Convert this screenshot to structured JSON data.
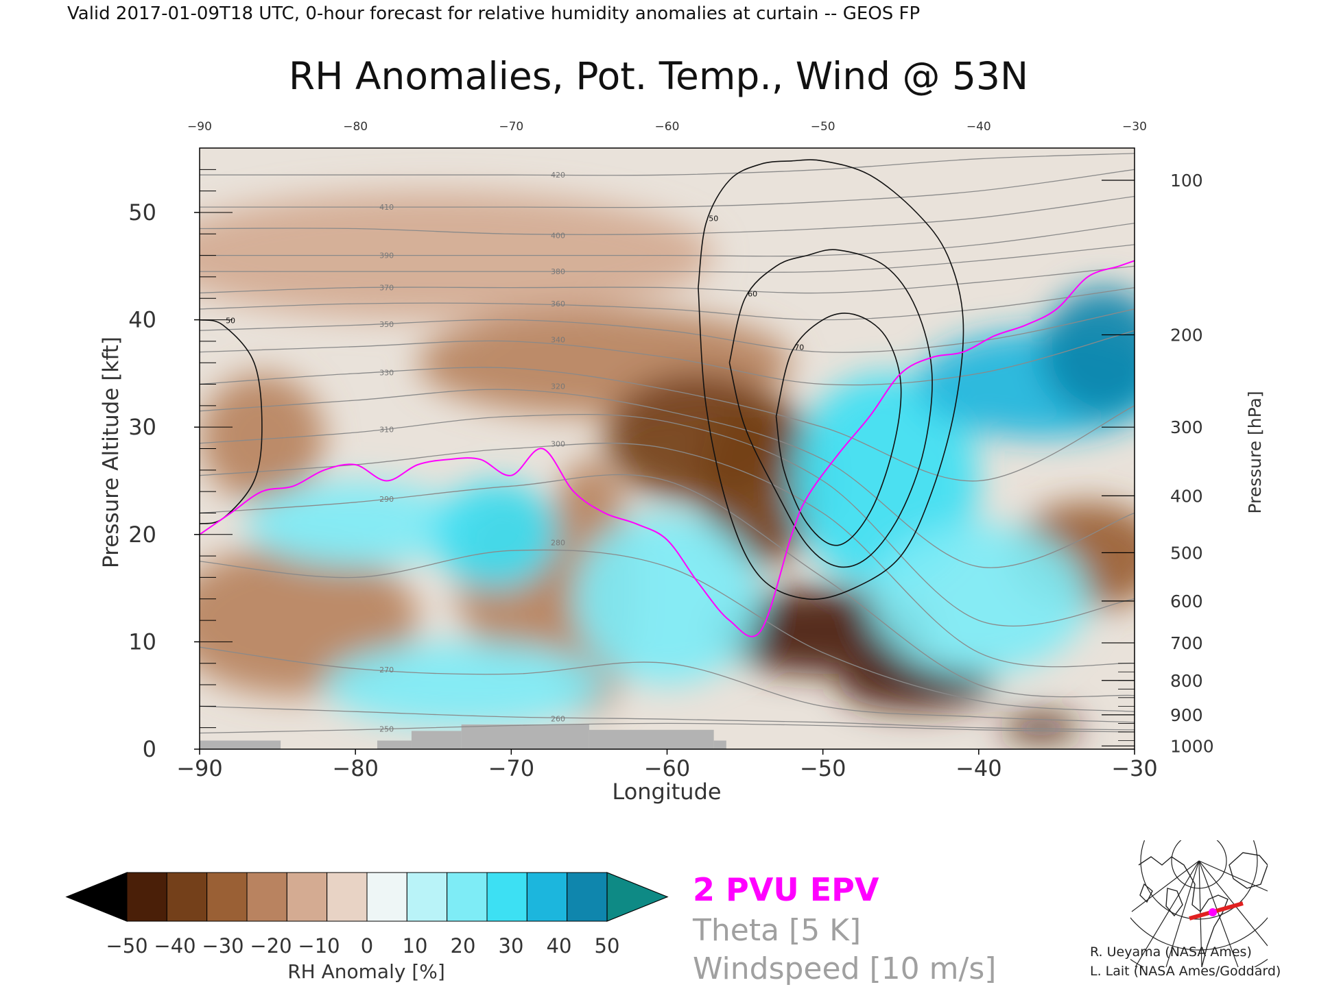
{
  "header": {
    "valid_line": "Valid 2017-01-09T18 UTC, 0-hour forecast for relative humidity anomalies at curtain -- GEOS FP"
  },
  "chart_data": {
    "type": "heatmap",
    "title": "RH Anomalies, Pot. Temp., Wind @ 53N",
    "xlabel": "Longitude",
    "ylabel_left": "Pressure Altitude [kft]",
    "ylabel_right": "Pressure [hPa]",
    "xlim": [
      -90,
      -30
    ],
    "ylim": [
      0,
      56
    ],
    "x_ticks": [
      -90,
      -80,
      -70,
      -60,
      -50,
      -40,
      -30
    ],
    "x_tick_labels": [
      "−90",
      "−80",
      "−70",
      "−60",
      "−50",
      "−40",
      "−30"
    ],
    "y_ticks": [
      0,
      10,
      20,
      30,
      40,
      50
    ],
    "y_tick_labels": [
      "0",
      "10",
      "20",
      "30",
      "40",
      "50"
    ],
    "pressure_ticks": [
      {
        "hpa": 100,
        "label": "100",
        "kft": 53.0
      },
      {
        "hpa": 200,
        "label": "200",
        "kft": 38.6
      },
      {
        "hpa": 300,
        "label": "300",
        "kft": 30.0
      },
      {
        "hpa": 400,
        "label": "400",
        "kft": 23.6
      },
      {
        "hpa": 500,
        "label": "500",
        "kft": 18.3
      },
      {
        "hpa": 600,
        "label": "600",
        "kft": 13.8
      },
      {
        "hpa": 700,
        "label": "700",
        "kft": 9.9
      },
      {
        "hpa": 800,
        "label": "800",
        "kft": 6.4
      },
      {
        "hpa": 900,
        "label": "900",
        "kft": 3.2
      },
      {
        "hpa": 1000,
        "label": "1000",
        "kft": 0.3
      }
    ],
    "theta_contours": [
      {
        "label": "250",
        "y": [
          1.5,
          1.8,
          2.2,
          2.4,
          2.2,
          1.8,
          1.6
        ]
      },
      {
        "label": "260",
        "y": [
          4.0,
          3.5,
          3.0,
          2.8,
          2.5,
          2.0,
          1.8
        ]
      },
      {
        "label": "270",
        "y": [
          9.5,
          7.5,
          7.0,
          8.0,
          4.0,
          3.0,
          2.5
        ]
      },
      {
        "label": "280",
        "y": [
          17.5,
          16.0,
          18.5,
          17.0,
          9.0,
          4.5,
          3.5
        ]
      },
      {
        "label": "290",
        "y": [
          22.0,
          23.0,
          24.5,
          25.0,
          16.0,
          6.0,
          5.0
        ]
      },
      {
        "label": "300",
        "y": [
          25.5,
          26.5,
          28.0,
          28.0,
          22.0,
          9.0,
          8.0
        ]
      },
      {
        "label": "310",
        "y": [
          28.5,
          29.5,
          31.0,
          30.5,
          25.0,
          12.0,
          14.0
        ]
      },
      {
        "label": "320",
        "y": [
          31.5,
          32.5,
          33.5,
          31.5,
          27.0,
          17.0,
          22.0
        ]
      },
      {
        "label": "330",
        "y": [
          34.0,
          35.0,
          35.5,
          33.5,
          30.0,
          25.0,
          32.0
        ]
      },
      {
        "label": "340",
        "y": [
          37.0,
          37.5,
          38.0,
          36.5,
          34.0,
          35.0,
          39.0
        ]
      },
      {
        "label": "350",
        "y": [
          39.0,
          39.5,
          40.0,
          39.0,
          37.0,
          38.0,
          41.0
        ]
      },
      {
        "label": "360",
        "y": [
          41.0,
          41.5,
          41.5,
          41.0,
          40.0,
          41.0,
          43.0
        ]
      },
      {
        "label": "370",
        "y": [
          42.5,
          43.0,
          43.0,
          43.0,
          42.5,
          43.5,
          45.0
        ]
      },
      {
        "label": "380",
        "y": [
          44.5,
          44.5,
          44.5,
          44.5,
          44.5,
          45.5,
          47.0
        ]
      },
      {
        "label": "390",
        "y": [
          46.0,
          46.0,
          46.0,
          46.0,
          46.0,
          47.0,
          49.0
        ]
      },
      {
        "label": "400",
        "y": [
          48.5,
          48.5,
          48.0,
          48.0,
          48.5,
          49.5,
          51.5
        ]
      },
      {
        "label": "410",
        "y": [
          50.5,
          50.5,
          50.5,
          50.5,
          51.0,
          52.0,
          54.0
        ]
      },
      {
        "label": "420",
        "y": [
          53.5,
          53.5,
          53.5,
          53.5,
          54.0,
          55.0,
          55.5
        ]
      }
    ],
    "wind_contours": [
      {
        "label": "50",
        "note": "jet core near -50 lon",
        "x": [
          -58,
          -57.5,
          -56,
          -54,
          -52,
          -50,
          -47,
          -44,
          -42,
          -41,
          -41.5,
          -43,
          -45,
          -48,
          -51,
          -54,
          -56,
          -57.5,
          -58
        ],
        "y": [
          43,
          49,
          53,
          54.5,
          54.8,
          54.8,
          53.5,
          50,
          46,
          40,
          32,
          24,
          18,
          15,
          14,
          16,
          22,
          32,
          43
        ]
      },
      {
        "label": "60",
        "x": [
          -56,
          -55,
          -53,
          -51,
          -49,
          -46,
          -44,
          -43,
          -43.5,
          -45,
          -47,
          -49,
          -51,
          -53,
          -55,
          -56
        ],
        "y": [
          36,
          42,
          45,
          46,
          46.5,
          45,
          41,
          35,
          28,
          22,
          18,
          17,
          19,
          24,
          30,
          36
        ]
      },
      {
        "label": "70",
        "x": [
          -53,
          -52,
          -50,
          -48,
          -46,
          -45,
          -45.5,
          -47,
          -49,
          -51,
          -52.5,
          -53
        ],
        "y": [
          31,
          37,
          40,
          40.5,
          38.5,
          34,
          28,
          22,
          19,
          21,
          26,
          31
        ]
      },
      {
        "label": "50",
        "note": "left edge",
        "x": [
          -90,
          -88.5,
          -86.5,
          -86,
          -86.5,
          -88.5,
          -90
        ],
        "y": [
          40,
          39.5,
          36,
          30,
          25,
          21.5,
          21
        ]
      }
    ],
    "epv_2pvu": {
      "label": "2 PVU EPV",
      "x": [
        -90,
        -88,
        -86,
        -84,
        -82,
        -80,
        -78,
        -76,
        -74,
        -72,
        -70,
        -68,
        -66,
        -64,
        -62,
        -60,
        -58,
        -56,
        -54,
        -52,
        -51,
        -49,
        -47,
        -45,
        -43,
        -41,
        -39,
        -37,
        -35,
        -33,
        -31,
        -30
      ],
      "y": [
        20,
        22,
        24,
        24.5,
        26,
        26.5,
        25,
        26.5,
        27,
        27,
        25.5,
        28,
        24,
        22,
        21,
        19.5,
        15.5,
        12,
        11,
        20,
        23.5,
        27.5,
        31,
        35,
        36.5,
        37,
        38.5,
        39.5,
        41,
        44,
        45,
        45.5
      ]
    },
    "terrain": {
      "color": "#b3b3b3",
      "segments": [
        {
          "x0": -90,
          "x1": -84.8,
          "top": 0.8
        },
        {
          "x0": -78.6,
          "x1": -76.4,
          "top": 0.8
        },
        {
          "x0": -76.4,
          "x1": -73.2,
          "top": 1.7
        },
        {
          "x0": -73.2,
          "x1": -65.0,
          "top": 2.3
        },
        {
          "x0": -65.0,
          "x1": -57.0,
          "top": 1.8
        },
        {
          "x0": -57.0,
          "x1": -56.2,
          "top": 0.8
        }
      ]
    },
    "rh_anomaly_blobs": [
      {
        "cx": -75,
        "cy": 46,
        "rx": 18,
        "ry": 6,
        "value": -12
      },
      {
        "cx": -64,
        "cy": 36,
        "rx": 12,
        "ry": 5,
        "value": -22
      },
      {
        "cx": -58,
        "cy": 29,
        "rx": 6,
        "ry": 6,
        "value": -40
      },
      {
        "cx": -54,
        "cy": 25,
        "rx": 4,
        "ry": 8,
        "value": -45
      },
      {
        "cx": -50,
        "cy": 11,
        "rx": 7,
        "ry": 4,
        "value": -50
      },
      {
        "cx": -44,
        "cy": 6,
        "rx": 5,
        "ry": 2.3,
        "value": -50
      },
      {
        "cx": -36,
        "cy": 2,
        "rx": 2.5,
        "ry": 1.2,
        "value": -48
      },
      {
        "cx": -33,
        "cy": 18,
        "rx": 5,
        "ry": 5,
        "value": -30
      },
      {
        "cx": -86,
        "cy": 29,
        "rx": 4,
        "ry": 6,
        "value": -22
      },
      {
        "cx": -70,
        "cy": 16,
        "rx": 3.5,
        "ry": 8,
        "value": -18
      },
      {
        "cx": -65,
        "cy": 15,
        "rx": 3,
        "ry": 12,
        "value": -20
      },
      {
        "cx": -84,
        "cy": 12,
        "rx": 8,
        "ry": 7,
        "value": -16
      },
      {
        "cx": -80,
        "cy": 21,
        "rx": 7,
        "ry": 4,
        "value": 20
      },
      {
        "cx": -71,
        "cy": 20,
        "rx": 4,
        "ry": 5,
        "value": 34
      },
      {
        "cx": -60,
        "cy": 14,
        "rx": 6,
        "ry": 8,
        "value": 22
      },
      {
        "cx": -73,
        "cy": 6,
        "rx": 9,
        "ry": 4,
        "value": 22
      },
      {
        "cx": -46,
        "cy": 25,
        "rx": 6,
        "ry": 10,
        "value": 32
      },
      {
        "cx": -36,
        "cy": 34,
        "rx": 8,
        "ry": 5,
        "value": 42
      },
      {
        "cx": -32,
        "cy": 37,
        "rx": 4,
        "ry": 6,
        "value": 52
      },
      {
        "cx": -40,
        "cy": 14,
        "rx": 7,
        "ry": 7,
        "value": 24
      }
    ]
  },
  "colorbar": {
    "label": "RH Anomaly [%]",
    "tick_labels": [
      "−50",
      "−40",
      "−30",
      "−20",
      "−10",
      "0",
      "10",
      "20",
      "30",
      "40",
      "50"
    ],
    "colors": [
      "#000000",
      "#4a1f08",
      "#74401a",
      "#9a6035",
      "#b98360",
      "#d4ab92",
      "#e8d3c5",
      "#eef6f6",
      "#b9f3f8",
      "#7eecf6",
      "#3de0f3",
      "#1cb6dd",
      "#0f86ad",
      "#0e8a85"
    ]
  },
  "legend": {
    "epv": {
      "label": "2 PVU EPV",
      "color": "#ff00ff"
    },
    "theta": {
      "label": "Theta [5 K]",
      "color": "#a0a0a0"
    },
    "wind": {
      "label": "Windspeed [10 m/s]",
      "color": "#a0a0a0"
    }
  },
  "credits": {
    "line1": "R. Ueyama (NASA Ames)",
    "line2": "L. Lait (NASA Ames/Goddard)"
  },
  "inset_map": {
    "track_color": "#e02020",
    "marker_color": "#ff00ff"
  }
}
